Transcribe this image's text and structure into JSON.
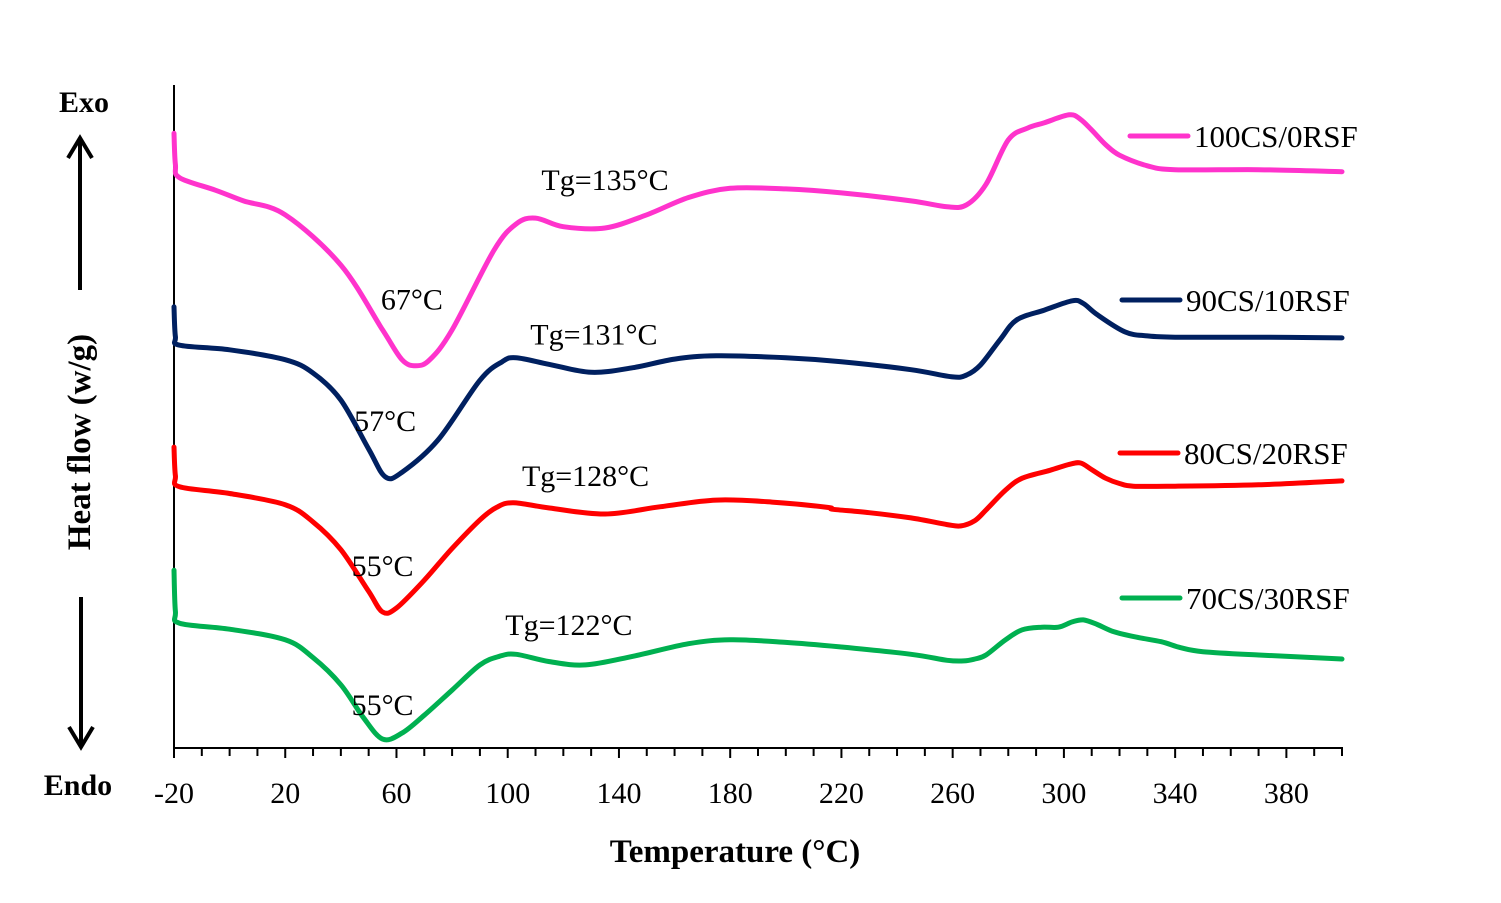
{
  "chart_data": {
    "type": "line",
    "title": "",
    "xlabel": "Temperature (°C)",
    "ylabel": "Heat flow (w/g)",
    "xlim": [
      -20,
      400
    ],
    "ylim": [
      0,
      100
    ],
    "y_units_note": "arbitrary offset units (stacked DSC thermograms)",
    "x_ticks": [
      -20,
      20,
      60,
      100,
      140,
      180,
      220,
      260,
      300,
      340,
      380
    ],
    "x_tick_labels": [
      "-20",
      "20",
      "60",
      "100",
      "140",
      "180",
      "220",
      "260",
      "300",
      "340",
      "380"
    ],
    "minor_tick_step": 10,
    "grid": false,
    "exo_label": "Exo",
    "endo_label": "Endo",
    "legend_position": "right",
    "series": [
      {
        "name": "100CS/0RSF",
        "color": "#ff33cc",
        "points": [
          [
            -20,
            92.7
          ],
          [
            -19.5,
            88
          ],
          [
            -18,
            86
          ],
          [
            -5,
            84.1
          ],
          [
            5,
            82.5
          ],
          [
            20,
            80.4
          ],
          [
            40,
            72.8
          ],
          [
            55,
            63
          ],
          [
            62,
            58.5
          ],
          [
            67,
            57.6
          ],
          [
            72,
            58.5
          ],
          [
            80,
            63
          ],
          [
            95,
            75
          ],
          [
            103,
            79
          ],
          [
            110,
            79.9
          ],
          [
            120,
            78.6
          ],
          [
            135,
            78.4
          ],
          [
            150,
            80.4
          ],
          [
            165,
            83
          ],
          [
            180,
            84.4
          ],
          [
            200,
            84.3
          ],
          [
            220,
            83.7
          ],
          [
            245,
            82.5
          ],
          [
            258,
            81.6
          ],
          [
            265,
            81.9
          ],
          [
            272,
            85
          ],
          [
            280,
            91.7
          ],
          [
            287,
            93.5
          ],
          [
            293,
            94.3
          ],
          [
            302,
            95.5
          ],
          [
            306,
            94.8
          ],
          [
            310,
            93.2
          ],
          [
            315,
            91
          ],
          [
            320,
            89.4
          ],
          [
            330,
            87.8
          ],
          [
            340,
            87.2
          ],
          [
            370,
            87.2
          ],
          [
            400,
            86.9
          ]
        ],
        "annotations": [
          {
            "text": "67°C",
            "x": 67,
            "y": 57.6
          },
          {
            "text": "Tg=135°C",
            "x": 135,
            "y": 78.4
          }
        ]
      },
      {
        "name": "90CS/10RSF",
        "color": "#002060",
        "points": [
          [
            -20,
            66.5
          ],
          [
            -19.5,
            62
          ],
          [
            -18,
            60.7
          ],
          [
            0,
            60
          ],
          [
            20,
            58.5
          ],
          [
            30,
            56.5
          ],
          [
            40,
            52.4
          ],
          [
            50,
            45
          ],
          [
            56,
            40.8
          ],
          [
            62,
            41.5
          ],
          [
            75,
            46.4
          ],
          [
            90,
            55.4
          ],
          [
            98,
            58.2
          ],
          [
            103,
            58.8
          ],
          [
            115,
            57.8
          ],
          [
            130,
            56.6
          ],
          [
            145,
            57.3
          ],
          [
            160,
            58.6
          ],
          [
            175,
            59.1
          ],
          [
            200,
            58.8
          ],
          [
            220,
            58.2
          ],
          [
            245,
            57
          ],
          [
            260,
            55.9
          ],
          [
            265,
            56.2
          ],
          [
            270,
            57.7
          ],
          [
            277,
            61.5
          ],
          [
            283,
            64.5
          ],
          [
            293,
            66
          ],
          [
            303,
            67.4
          ],
          [
            307,
            67
          ],
          [
            312,
            65.3
          ],
          [
            322,
            62.7
          ],
          [
            330,
            62.1
          ],
          [
            340,
            61.9
          ],
          [
            370,
            61.9
          ],
          [
            400,
            61.8
          ]
        ],
        "annotations": [
          {
            "text": "57°C",
            "x": 57,
            "y": 40.8
          },
          {
            "text": "Tg=131°C",
            "x": 131,
            "y": 56.6
          }
        ]
      },
      {
        "name": "80CS/20RSF",
        "color": "#ff0000",
        "points": [
          [
            -20,
            45.3
          ],
          [
            -19.5,
            41
          ],
          [
            -18,
            39.3
          ],
          [
            0,
            38.3
          ],
          [
            20,
            36.6
          ],
          [
            30,
            34
          ],
          [
            40,
            29.8
          ],
          [
            50,
            23.5
          ],
          [
            55,
            20.4
          ],
          [
            60,
            21
          ],
          [
            70,
            25.2
          ],
          [
            80,
            30
          ],
          [
            90,
            34.3
          ],
          [
            96,
            36.2
          ],
          [
            102,
            36.9
          ],
          [
            115,
            36.1
          ],
          [
            135,
            35.2
          ],
          [
            155,
            36.3
          ],
          [
            175,
            37.3
          ],
          [
            195,
            37
          ],
          [
            215,
            36.2
          ],
          [
            217,
            35.9
          ],
          [
            230,
            35.4
          ],
          [
            245,
            34.6
          ],
          [
            258,
            33.6
          ],
          [
            263,
            33.4
          ],
          [
            268,
            34.2
          ],
          [
            272,
            35.8
          ],
          [
            279,
            38.8
          ],
          [
            285,
            40.6
          ],
          [
            295,
            41.8
          ],
          [
            302,
            42.7
          ],
          [
            306,
            42.9
          ],
          [
            310,
            41.9
          ],
          [
            315,
            40.6
          ],
          [
            320,
            39.8
          ],
          [
            325,
            39.4
          ],
          [
            340,
            39.4
          ],
          [
            370,
            39.6
          ],
          [
            400,
            40.2
          ]
        ],
        "annotations": [
          {
            "text": "55°C",
            "x": 55,
            "y": 20.4
          },
          {
            "text": "Tg=128°C",
            "x": 128,
            "y": 35.2
          }
        ]
      },
      {
        "name": "70CS/30RSF",
        "color": "#00b050",
        "points": [
          [
            -20,
            26.7
          ],
          [
            -19.5,
            20.5
          ],
          [
            -18,
            18.7
          ],
          [
            0,
            17.8
          ],
          [
            20,
            16.2
          ],
          [
            30,
            13.5
          ],
          [
            40,
            9.4
          ],
          [
            48,
            4.5
          ],
          [
            55,
            1.2
          ],
          [
            62,
            2.1
          ],
          [
            70,
            4.8
          ],
          [
            80,
            8.6
          ],
          [
            90,
            12.4
          ],
          [
            97,
            13.7
          ],
          [
            103,
            14
          ],
          [
            115,
            12.9
          ],
          [
            128,
            12.4
          ],
          [
            145,
            13.7
          ],
          [
            165,
            15.6
          ],
          [
            180,
            16.2
          ],
          [
            200,
            15.8
          ],
          [
            220,
            15.1
          ],
          [
            245,
            14
          ],
          [
            258,
            13.1
          ],
          [
            264,
            13
          ],
          [
            268,
            13.3
          ],
          [
            272,
            13.9
          ],
          [
            279,
            16.2
          ],
          [
            285,
            17.7
          ],
          [
            292,
            18.1
          ],
          [
            298,
            18.1
          ],
          [
            303,
            18.9
          ],
          [
            307,
            19.2
          ],
          [
            312,
            18.5
          ],
          [
            318,
            17.4
          ],
          [
            326,
            16.6
          ],
          [
            335,
            15.9
          ],
          [
            342,
            15
          ],
          [
            350,
            14.4
          ],
          [
            370,
            13.9
          ],
          [
            400,
            13.3
          ]
        ],
        "annotations": [
          {
            "text": "55°C",
            "x": 55,
            "y": 1.2
          },
          {
            "text": "Tg=122°C",
            "x": 122,
            "y": 12.4
          }
        ]
      }
    ]
  }
}
